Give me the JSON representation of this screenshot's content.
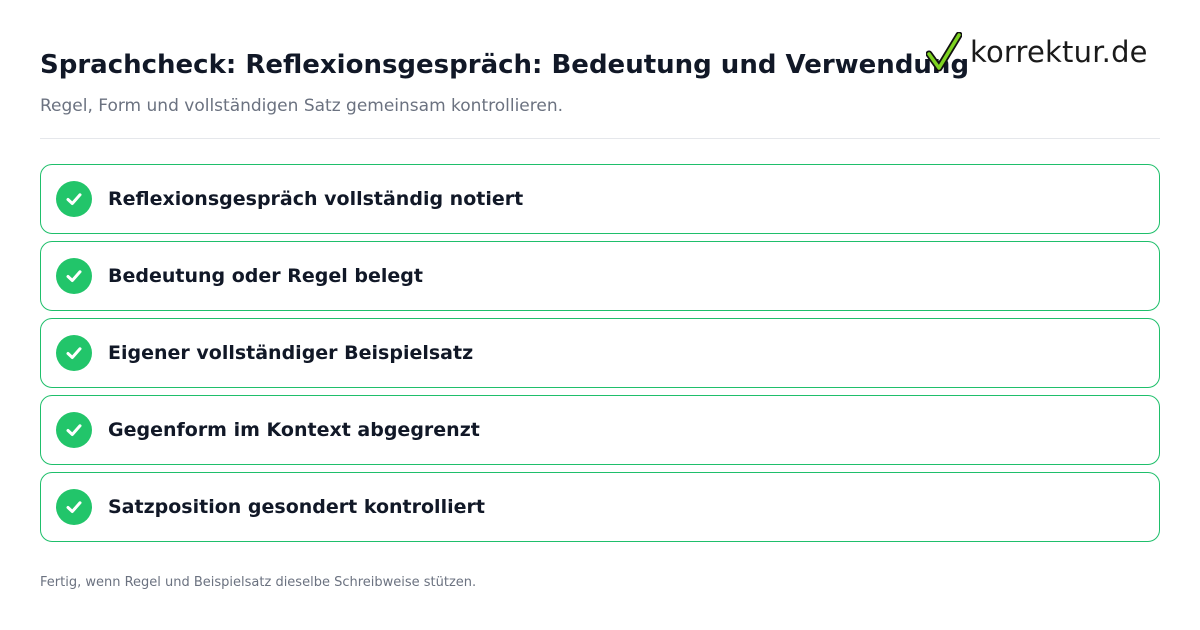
{
  "header": {
    "title": "Sprachcheck: Reflexionsgespräch: Bedeutung und Verwendung",
    "subtitle": "Regel, Form und vollständigen Satz gemeinsam kontrollieren."
  },
  "logo": {
    "text": "korrektur.de",
    "icon": "checkmark-icon",
    "icon_color": "#7ED321"
  },
  "checklist": {
    "accent_color": "#22C56A",
    "items": [
      {
        "label": "Reflexionsgespräch vollständig notiert",
        "checked": true
      },
      {
        "label": "Bedeutung oder Regel belegt",
        "checked": true
      },
      {
        "label": "Eigener vollständiger Beispielsatz",
        "checked": true
      },
      {
        "label": "Gegenform im Kontext abgegrenzt",
        "checked": true
      },
      {
        "label": "Satzposition gesondert kontrolliert",
        "checked": true
      }
    ]
  },
  "footer": {
    "note": "Fertig, wenn Regel und Beispielsatz dieselbe Schreibweise stützen."
  }
}
